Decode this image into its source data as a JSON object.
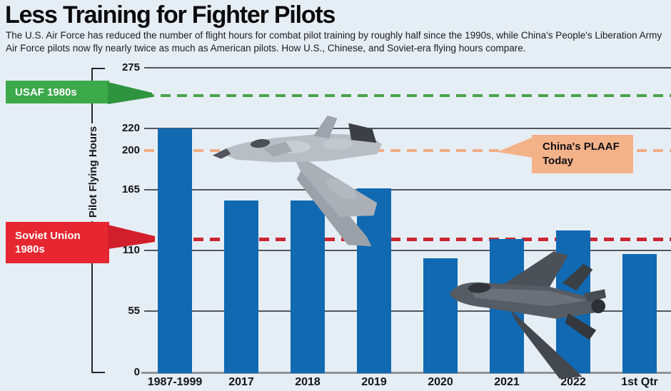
{
  "header": {
    "title": "Less Training for Fighter Pilots",
    "subtitle": "The U.S. Air Force has reduced the number of flight hours for combat pilot training by roughly half since the 1990s, while China's People's Liberation Army Air Force pilots now fly nearly twice as much as American pilots. How U.S., Chinese, and Soviet-era flying hours compare."
  },
  "chart_data": {
    "type": "bar",
    "title": "Less Training for Fighter Pilots",
    "ylabel": "Pilot Flying Hours",
    "categories": [
      "1987-1999",
      "2017",
      "2018",
      "2019",
      "2020",
      "2021",
      "2022",
      "1st Qtr"
    ],
    "values": [
      220,
      155,
      155,
      166,
      103,
      120,
      128,
      107
    ],
    "ylim": [
      0,
      275
    ],
    "ytick_labels": [
      0,
      55,
      110,
      165,
      200,
      220,
      275
    ],
    "gridline_ticks": [
      55,
      110,
      165,
      220,
      275
    ],
    "legend_position": "none",
    "grid": "horizontal",
    "bar_color": "#1069b1",
    "background_color": "#e6eef5",
    "ref_lines": [
      {
        "label": "USAF 1980s",
        "value": 250,
        "line_color": "#4ba24c",
        "flag_color": "#3ca94b",
        "text_color": "#ffffff",
        "thickness": 4,
        "side": "left"
      },
      {
        "label": "China's PLAAF Today",
        "value": 200,
        "line_color": "#f0ad85",
        "flag_color": "#f4b289",
        "text_color": "#101014",
        "thickness": 4,
        "side": "right"
      },
      {
        "label": "Soviet Union 1980s",
        "value": 120,
        "line_color": "#cb2533",
        "flag_color": "#e62630",
        "text_color": "#ffffff",
        "thickness": 5,
        "side": "left"
      }
    ],
    "decorations": [
      "chinese-j20-fighter-jet",
      "us-f35-fighter-jet"
    ]
  }
}
